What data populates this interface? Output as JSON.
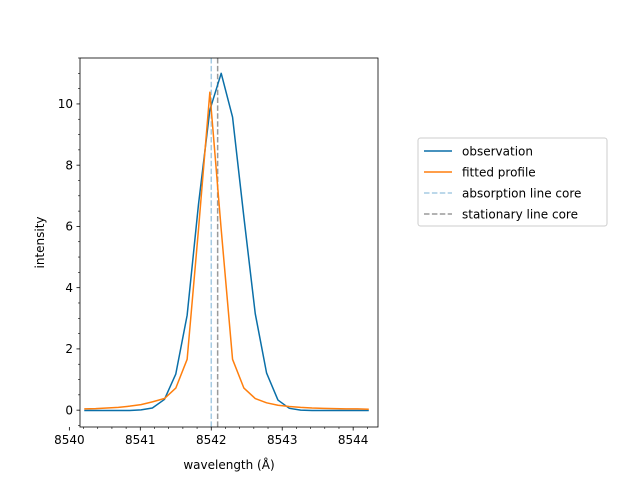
{
  "chart_data": {
    "type": "line",
    "xlabel": "wavelength (Å)",
    "ylabel": "intensity",
    "xlim": [
      8540.15,
      8544.35
    ],
    "ylim": [
      -0.55,
      11.5
    ],
    "xticks": [
      8540,
      8541,
      8542,
      8543,
      8544
    ],
    "yticks": [
      0,
      2,
      4,
      6,
      8,
      10
    ],
    "x_minor_step": 0.2,
    "y_minor_step": 0.5,
    "grid": false,
    "legend_position": "outside-right",
    "series": [
      {
        "name": "observation",
        "color": "#0a6fa8",
        "style": "solid",
        "x": [
          8540.21,
          8540.37,
          8540.53,
          8540.69,
          8540.85,
          8541.01,
          8541.17,
          8541.34,
          8541.5,
          8541.66,
          8541.82,
          8541.98,
          8542.14,
          8542.3,
          8542.46,
          8542.62,
          8542.78,
          8542.94,
          8543.1,
          8543.26,
          8543.42,
          8543.58,
          8543.74,
          8543.9,
          8544.06,
          8544.22
        ],
        "values": [
          -0.01,
          -0.01,
          -0.01,
          -0.01,
          -0.01,
          0.01,
          0.07,
          0.35,
          1.18,
          3.1,
          6.72,
          9.8,
          11.0,
          9.57,
          6.3,
          3.15,
          1.21,
          0.33,
          0.06,
          0.0,
          -0.01,
          -0.01,
          -0.01,
          -0.01,
          -0.01,
          -0.01
        ]
      },
      {
        "name": "fitted profile",
        "color": "#ff7f0e",
        "style": "solid",
        "x": [
          8540.21,
          8540.37,
          8540.53,
          8540.69,
          8540.85,
          8541.01,
          8541.17,
          8541.34,
          8541.5,
          8541.66,
          8541.82,
          8541.98,
          8542.14,
          8542.3,
          8542.46,
          8542.62,
          8542.78,
          8542.94,
          8543.1,
          8543.26,
          8543.42,
          8543.58,
          8543.74,
          8543.9,
          8544.06,
          8544.22
        ],
        "values": [
          0.04,
          0.05,
          0.07,
          0.09,
          0.13,
          0.18,
          0.27,
          0.38,
          0.72,
          1.66,
          5.9,
          10.38,
          5.9,
          1.66,
          0.72,
          0.38,
          0.24,
          0.16,
          0.12,
          0.09,
          0.07,
          0.06,
          0.05,
          0.04,
          0.04,
          0.03
        ]
      },
      {
        "name": "absorption line core",
        "color": "#a6cbe3",
        "style": "dashed",
        "vline": 8542.0
      },
      {
        "name": "stationary line core",
        "color": "#9a9a9a",
        "style": "dashed",
        "vline": 8542.09
      }
    ]
  }
}
